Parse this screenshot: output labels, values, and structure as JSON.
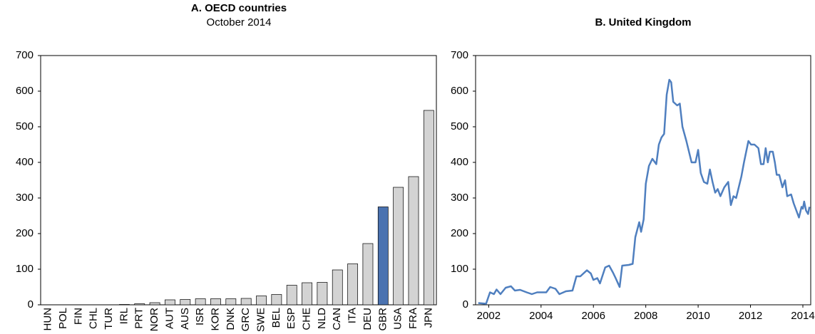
{
  "chart_data": [
    {
      "type": "bar",
      "title": "A. OECD countries",
      "subtitle": "October 2014",
      "categories": [
        "HUN",
        "POL",
        "FIN",
        "CHL",
        "TUR",
        "IRL",
        "PRT",
        "NOR",
        "AUT",
        "AUS",
        "ISR",
        "KOR",
        "DNK",
        "GRC",
        "SWE",
        "BEL",
        "ESP",
        "CHE",
        "NLD",
        "CAN",
        "ITA",
        "DEU",
        "GBR",
        "USA",
        "FRA",
        "JPN"
      ],
      "values": [
        0,
        0,
        0,
        0,
        0,
        1,
        3,
        6,
        14,
        15,
        17,
        17,
        17,
        18,
        25,
        29,
        55,
        62,
        63,
        98,
        115,
        172,
        275,
        330,
        360,
        546
      ],
      "colors": [
        "#d3d3d3",
        "#d3d3d3",
        "#d3d3d3",
        "#d3d3d3",
        "#d3d3d3",
        "#d3d3d3",
        "#d3d3d3",
        "#d3d3d3",
        "#d3d3d3",
        "#d3d3d3",
        "#d3d3d3",
        "#d3d3d3",
        "#d3d3d3",
        "#d3d3d3",
        "#d3d3d3",
        "#d3d3d3",
        "#d3d3d3",
        "#d3d3d3",
        "#d3d3d3",
        "#d3d3d3",
        "#d3d3d3",
        "#d3d3d3",
        "#4a72b0",
        "#d3d3d3",
        "#d3d3d3",
        "#d3d3d3"
      ],
      "ylim": [
        0,
        700
      ],
      "yticks": [
        0,
        100,
        200,
        300,
        400,
        500,
        600,
        700
      ]
    },
    {
      "type": "line",
      "title": "B. United Kingdom",
      "color": "#4f7fbf",
      "x": [
        2001.6,
        2001.9,
        2002.05,
        2002.2,
        2002.3,
        2002.45,
        2002.65,
        2002.85,
        2003.0,
        2003.2,
        2003.45,
        2003.65,
        2003.85,
        2004.2,
        2004.35,
        2004.55,
        2004.7,
        2004.95,
        2005.2,
        2005.35,
        2005.5,
        2005.75,
        2005.9,
        2006.0,
        2006.15,
        2006.25,
        2006.45,
        2006.6,
        2006.75,
        2006.85,
        2007.0,
        2007.1,
        2007.35,
        2007.5,
        2007.6,
        2007.75,
        2007.82,
        2007.92,
        2008.0,
        2008.12,
        2008.25,
        2008.4,
        2008.5,
        2008.6,
        2008.7,
        2008.8,
        2008.9,
        2008.97,
        2009.05,
        2009.2,
        2009.3,
        2009.4,
        2009.55,
        2009.75,
        2009.9,
        2010.0,
        2010.1,
        2010.22,
        2010.35,
        2010.45,
        2010.55,
        2010.65,
        2010.75,
        2010.85,
        2011.0,
        2011.15,
        2011.25,
        2011.35,
        2011.45,
        2011.65,
        2011.75,
        2011.92,
        2012.02,
        2012.15,
        2012.3,
        2012.4,
        2012.5,
        2012.58,
        2012.66,
        2012.74,
        2012.85,
        2012.93,
        2013.0,
        2013.1,
        2013.22,
        2013.32,
        2013.4,
        2013.55,
        2013.65,
        2013.75,
        2013.85,
        2013.95,
        2014.0,
        2014.05,
        2014.12,
        2014.2,
        2014.25
      ],
      "values": [
        5,
        3,
        35,
        30,
        43,
        30,
        48,
        52,
        40,
        42,
        35,
        30,
        35,
        35,
        50,
        45,
        30,
        38,
        40,
        80,
        80,
        97,
        88,
        70,
        75,
        60,
        105,
        110,
        90,
        75,
        50,
        110,
        112,
        115,
        190,
        232,
        205,
        240,
        340,
        390,
        410,
        395,
        450,
        470,
        480,
        590,
        632,
        625,
        570,
        560,
        565,
        500,
        460,
        400,
        400,
        435,
        370,
        345,
        340,
        380,
        345,
        315,
        325,
        305,
        330,
        345,
        280,
        305,
        300,
        360,
        400,
        460,
        450,
        450,
        440,
        395,
        395,
        440,
        400,
        430,
        430,
        400,
        365,
        365,
        330,
        350,
        305,
        310,
        285,
        265,
        245,
        275,
        270,
        290,
        265,
        255,
        275
      ],
      "xlim": [
        2001.5,
        2014.3
      ],
      "xticks": [
        2002,
        2004,
        2006,
        2008,
        2010,
        2012,
        2014
      ],
      "ylim": [
        0,
        700
      ],
      "yticks": [
        0,
        100,
        200,
        300,
        400,
        500,
        600,
        700
      ]
    }
  ]
}
